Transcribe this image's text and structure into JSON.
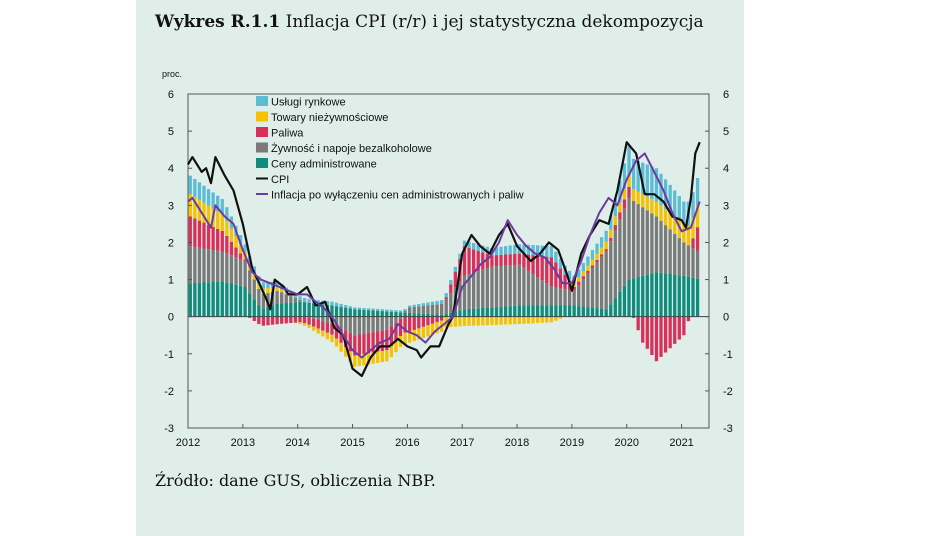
{
  "figure": {
    "label": "Wykres R.1.1",
    "title": "Inflacja CPI (r/r) i jej statystyczna dekompozycja",
    "source": "Źródło: dane GUS, obliczenia NBP."
  },
  "chart_data": {
    "type": "bar",
    "stacked": true,
    "ylabel": "proc.",
    "ylim": [
      -3,
      6
    ],
    "yticks": [
      "-3",
      "-2",
      "-1",
      "0",
      "1",
      "2",
      "3",
      "4",
      "5",
      "6"
    ],
    "xlim": [
      2012,
      2021.5
    ],
    "xticks": [
      "2012",
      "2013",
      "2014",
      "2015",
      "2016",
      "2017",
      "2018",
      "2019",
      "2020",
      "2021"
    ],
    "frequency": "monthly",
    "start": "2012-01",
    "end": "2021-04",
    "grid": false,
    "legend_position": "top-left",
    "colors": {
      "uslugi": "#5bbcd6",
      "towary": "#f5c200",
      "paliwa": "#d9305a",
      "zywnosc": "#7a7a7a",
      "ceny_adm": "#0f8c7c",
      "cpi": "#111111",
      "core": "#6e3a9e"
    },
    "bar_series": [
      {
        "key": "ceny_adm",
        "name": "Ceny administrowane",
        "knots": [
          [
            2012.0,
            0.9
          ],
          [
            2012.6,
            0.95
          ],
          [
            2013.0,
            0.8
          ],
          [
            2013.3,
            0.2
          ],
          [
            2013.6,
            0.35
          ],
          [
            2014.0,
            0.4
          ],
          [
            2014.6,
            0.3
          ],
          [
            2015.0,
            0.2
          ],
          [
            2016.0,
            0.1
          ],
          [
            2016.6,
            0.05
          ],
          [
            2017.0,
            0.2
          ],
          [
            2018.0,
            0.3
          ],
          [
            2019.0,
            0.3
          ],
          [
            2019.6,
            0.2
          ],
          [
            2020.0,
            1.0
          ],
          [
            2020.5,
            1.2
          ],
          [
            2021.0,
            1.1
          ],
          [
            2021.33,
            1.0
          ]
        ]
      },
      {
        "key": "zywnosc",
        "name": "Żywność i napoje bezalkoholowe",
        "knots": [
          [
            2012.0,
            1.0
          ],
          [
            2012.6,
            0.8
          ],
          [
            2013.0,
            0.7
          ],
          [
            2013.3,
            0.4
          ],
          [
            2013.6,
            0.35
          ],
          [
            2014.0,
            0.05
          ],
          [
            2014.6,
            -0.2
          ],
          [
            2015.0,
            -0.5
          ],
          [
            2015.6,
            -0.35
          ],
          [
            2016.0,
            0.15
          ],
          [
            2016.6,
            0.3
          ],
          [
            2017.0,
            0.9
          ],
          [
            2017.5,
            1.1
          ],
          [
            2018.0,
            1.1
          ],
          [
            2018.6,
            0.5
          ],
          [
            2019.0,
            0.4
          ],
          [
            2019.6,
            1.6
          ],
          [
            2020.0,
            2.2
          ],
          [
            2020.5,
            1.5
          ],
          [
            2021.0,
            0.9
          ],
          [
            2021.33,
            0.7
          ]
        ]
      },
      {
        "key": "paliwa",
        "name": "Paliwa",
        "knots": [
          [
            2012.0,
            0.8
          ],
          [
            2012.6,
            0.55
          ],
          [
            2013.0,
            0.05
          ],
          [
            2013.3,
            -0.25
          ],
          [
            2013.6,
            -0.2
          ],
          [
            2014.0,
            -0.15
          ],
          [
            2014.6,
            -0.3
          ],
          [
            2015.0,
            -0.55
          ],
          [
            2015.6,
            -0.55
          ],
          [
            2016.0,
            -0.4
          ],
          [
            2016.6,
            -0.1
          ],
          [
            2017.0,
            0.8
          ],
          [
            2017.5,
            0.3
          ],
          [
            2018.0,
            0.3
          ],
          [
            2018.6,
            0.8
          ],
          [
            2019.0,
            0.1
          ],
          [
            2019.6,
            0.05
          ],
          [
            2020.0,
            0.3
          ],
          [
            2020.25,
            -0.7
          ],
          [
            2020.5,
            -1.2
          ],
          [
            2021.0,
            -0.5
          ],
          [
            2021.33,
            1.0
          ]
        ]
      },
      {
        "key": "towary",
        "name": "Towary nieżywnościowe",
        "knots": [
          [
            2012.0,
            0.6
          ],
          [
            2012.6,
            0.45
          ],
          [
            2013.0,
            0.2
          ],
          [
            2013.6,
            0.1
          ],
          [
            2014.0,
            -0.05
          ],
          [
            2014.6,
            -0.2
          ],
          [
            2015.0,
            -0.3
          ],
          [
            2015.6,
            -0.3
          ],
          [
            2016.0,
            -0.3
          ],
          [
            2016.6,
            -0.3
          ],
          [
            2017.0,
            -0.25
          ],
          [
            2018.0,
            -0.2
          ],
          [
            2018.6,
            -0.15
          ],
          [
            2019.0,
            0.1
          ],
          [
            2019.6,
            0.2
          ],
          [
            2020.0,
            0.3
          ],
          [
            2020.5,
            0.4
          ],
          [
            2021.0,
            0.5
          ],
          [
            2021.33,
            0.6
          ]
        ]
      },
      {
        "key": "uslugi",
        "name": "Usługi rynkowe",
        "knots": [
          [
            2012.0,
            0.5
          ],
          [
            2012.6,
            0.4
          ],
          [
            2013.0,
            0.2
          ],
          [
            2013.6,
            0.15
          ],
          [
            2014.0,
            0.1
          ],
          [
            2014.6,
            0.1
          ],
          [
            2015.0,
            0.05
          ],
          [
            2016.0,
            0.05
          ],
          [
            2016.6,
            0.1
          ],
          [
            2017.0,
            0.15
          ],
          [
            2018.0,
            0.25
          ],
          [
            2018.6,
            0.3
          ],
          [
            2019.0,
            0.2
          ],
          [
            2019.6,
            0.3
          ],
          [
            2020.0,
            0.8
          ],
          [
            2020.5,
            0.9
          ],
          [
            2021.0,
            0.6
          ],
          [
            2021.33,
            0.8
          ]
        ]
      }
    ],
    "line_series": [
      {
        "key": "cpi",
        "name": "CPI",
        "knots": [
          [
            2012.0,
            4.1
          ],
          [
            2012.08,
            4.3
          ],
          [
            2012.25,
            3.9
          ],
          [
            2012.33,
            4.0
          ],
          [
            2012.42,
            3.6
          ],
          [
            2012.5,
            4.3
          ],
          [
            2012.67,
            3.8
          ],
          [
            2012.83,
            3.4
          ],
          [
            2013.0,
            2.5
          ],
          [
            2013.17,
            1.3
          ],
          [
            2013.33,
            0.8
          ],
          [
            2013.42,
            0.5
          ],
          [
            2013.5,
            0.2
          ],
          [
            2013.58,
            1.0
          ],
          [
            2013.75,
            0.8
          ],
          [
            2013.83,
            0.6
          ],
          [
            2014.0,
            0.6
          ],
          [
            2014.17,
            0.8
          ],
          [
            2014.33,
            0.3
          ],
          [
            2014.5,
            0.4
          ],
          [
            2014.67,
            -0.3
          ],
          [
            2014.83,
            -0.5
          ],
          [
            2015.0,
            -1.4
          ],
          [
            2015.17,
            -1.6
          ],
          [
            2015.33,
            -1.1
          ],
          [
            2015.5,
            -0.8
          ],
          [
            2015.67,
            -0.8
          ],
          [
            2015.83,
            -0.6
          ],
          [
            2016.0,
            -0.8
          ],
          [
            2016.17,
            -0.9
          ],
          [
            2016.25,
            -1.1
          ],
          [
            2016.42,
            -0.8
          ],
          [
            2016.58,
            -0.8
          ],
          [
            2016.75,
            -0.2
          ],
          [
            2016.83,
            0.0
          ],
          [
            2017.0,
            1.7
          ],
          [
            2017.17,
            2.2
          ],
          [
            2017.33,
            1.9
          ],
          [
            2017.5,
            1.7
          ],
          [
            2017.67,
            2.2
          ],
          [
            2017.83,
            2.5
          ],
          [
            2018.0,
            1.9
          ],
          [
            2018.25,
            1.5
          ],
          [
            2018.42,
            1.7
          ],
          [
            2018.58,
            2.0
          ],
          [
            2018.75,
            1.8
          ],
          [
            2018.92,
            1.1
          ],
          [
            2019.0,
            0.7
          ],
          [
            2019.17,
            1.7
          ],
          [
            2019.33,
            2.2
          ],
          [
            2019.5,
            2.6
          ],
          [
            2019.67,
            2.5
          ],
          [
            2019.83,
            3.4
          ],
          [
            2020.0,
            4.7
          ],
          [
            2020.17,
            4.4
          ],
          [
            2020.33,
            3.3
          ],
          [
            2020.5,
            3.3
          ],
          [
            2020.67,
            3.1
          ],
          [
            2020.83,
            2.7
          ],
          [
            2021.0,
            2.6
          ],
          [
            2021.08,
            2.4
          ],
          [
            2021.17,
            3.2
          ],
          [
            2021.25,
            4.4
          ],
          [
            2021.33,
            4.7
          ]
        ]
      },
      {
        "key": "core",
        "name": "Inflacja po wyłączeniu cen administrowanych i paliw",
        "knots": [
          [
            2012.0,
            3.1
          ],
          [
            2012.08,
            3.2
          ],
          [
            2012.25,
            2.8
          ],
          [
            2012.42,
            2.4
          ],
          [
            2012.5,
            3.0
          ],
          [
            2012.67,
            2.7
          ],
          [
            2012.83,
            2.5
          ],
          [
            2013.0,
            1.8
          ],
          [
            2013.17,
            1.2
          ],
          [
            2013.33,
            1.0
          ],
          [
            2013.5,
            0.9
          ],
          [
            2013.67,
            0.8
          ],
          [
            2013.83,
            0.7
          ],
          [
            2014.0,
            0.6
          ],
          [
            2014.17,
            0.6
          ],
          [
            2014.33,
            0.4
          ],
          [
            2014.5,
            0.2
          ],
          [
            2014.67,
            -0.1
          ],
          [
            2014.83,
            -0.5
          ],
          [
            2015.0,
            -0.9
          ],
          [
            2015.17,
            -1.1
          ],
          [
            2015.33,
            -0.9
          ],
          [
            2015.5,
            -0.7
          ],
          [
            2015.67,
            -0.6
          ],
          [
            2015.83,
            -0.2
          ],
          [
            2016.0,
            -0.4
          ],
          [
            2016.17,
            -0.5
          ],
          [
            2016.33,
            -0.7
          ],
          [
            2016.5,
            -0.4
          ],
          [
            2016.67,
            -0.2
          ],
          [
            2016.83,
            0.0
          ],
          [
            2017.0,
            0.8
          ],
          [
            2017.17,
            1.1
          ],
          [
            2017.33,
            1.4
          ],
          [
            2017.5,
            1.6
          ],
          [
            2017.67,
            2.0
          ],
          [
            2017.83,
            2.6
          ],
          [
            2018.0,
            2.2
          ],
          [
            2018.17,
            1.9
          ],
          [
            2018.33,
            1.7
          ],
          [
            2018.5,
            1.6
          ],
          [
            2018.67,
            1.3
          ],
          [
            2018.83,
            0.9
          ],
          [
            2019.0,
            0.9
          ],
          [
            2019.17,
            1.5
          ],
          [
            2019.33,
            2.2
          ],
          [
            2019.5,
            2.8
          ],
          [
            2019.67,
            3.2
          ],
          [
            2019.83,
            3.0
          ],
          [
            2020.0,
            3.7
          ],
          [
            2020.17,
            4.2
          ],
          [
            2020.33,
            4.4
          ],
          [
            2020.5,
            3.9
          ],
          [
            2020.67,
            3.4
          ],
          [
            2020.83,
            2.8
          ],
          [
            2021.0,
            2.3
          ],
          [
            2021.17,
            2.4
          ],
          [
            2021.33,
            3.1
          ]
        ]
      }
    ],
    "legend_order": [
      "uslugi",
      "towary",
      "paliwa",
      "zywnosc",
      "ceny_adm",
      "cpi",
      "core"
    ]
  }
}
